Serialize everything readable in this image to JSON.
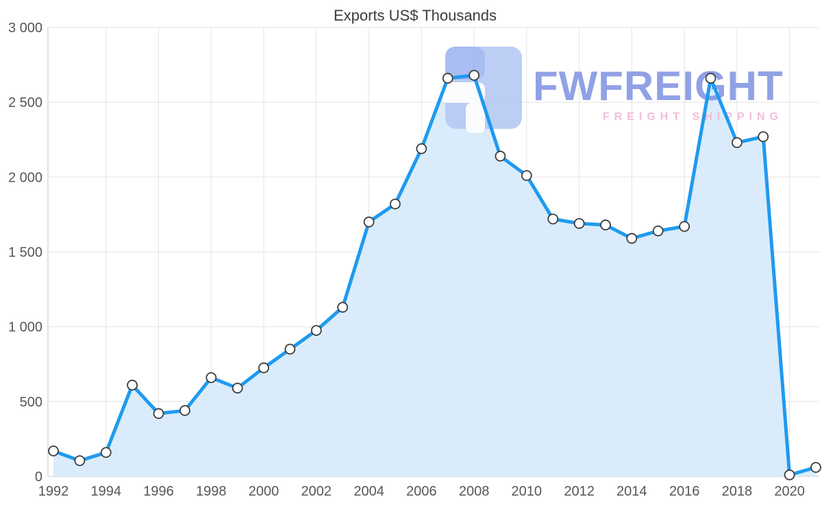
{
  "chart_data": {
    "type": "area",
    "title": "Exports US$ Thousands",
    "series_name": "Exports",
    "units": "US$ Thousands",
    "x": [
      1992,
      1993,
      1994,
      1995,
      1996,
      1997,
      1998,
      1999,
      2000,
      2001,
      2002,
      2003,
      2004,
      2005,
      2006,
      2007,
      2008,
      2009,
      2010,
      2011,
      2012,
      2013,
      2014,
      2015,
      2016,
      2017,
      2018,
      2019,
      2020,
      2021
    ],
    "values": [
      170,
      105,
      160,
      610,
      420,
      440,
      660,
      590,
      725,
      850,
      975,
      1130,
      1700,
      1820,
      2190,
      2660,
      2680,
      2140,
      2010,
      1720,
      1690,
      1680,
      1590,
      1640,
      1670,
      2660,
      2230,
      2270,
      10,
      60
    ],
    "ylim": [
      0,
      3000
    ],
    "y_ticks": [
      0,
      500,
      1000,
      1500,
      2000,
      2500,
      3000
    ],
    "y_tick_labels": [
      "0",
      "500",
      "1 000",
      "1 500",
      "2 000",
      "2 500",
      "3 000"
    ],
    "x_ticks": [
      1992,
      1994,
      1996,
      1998,
      2000,
      2002,
      2004,
      2006,
      2008,
      2010,
      2012,
      2014,
      2016,
      2018,
      2020
    ],
    "grid": true,
    "legend": false
  },
  "style": {
    "line_color": "#1f9af0",
    "area_color": "#daecfb",
    "marker_fill": "#ffffff",
    "marker_stroke": "#3d3d3d",
    "grid_color": "#e4e4e4",
    "axis_color": "#c6c6c6",
    "tick_text_color": "#565656",
    "title_color": "#3c3c3c"
  },
  "watermark": {
    "brand": "FWFREIGHT",
    "tagline": "FREIGHT SHIPPING",
    "brand_color": "#7d90e0",
    "tagline_color": "#efb9d8",
    "logo_primary": "#b5c8f4",
    "logo_accent": "#9db4f0"
  }
}
